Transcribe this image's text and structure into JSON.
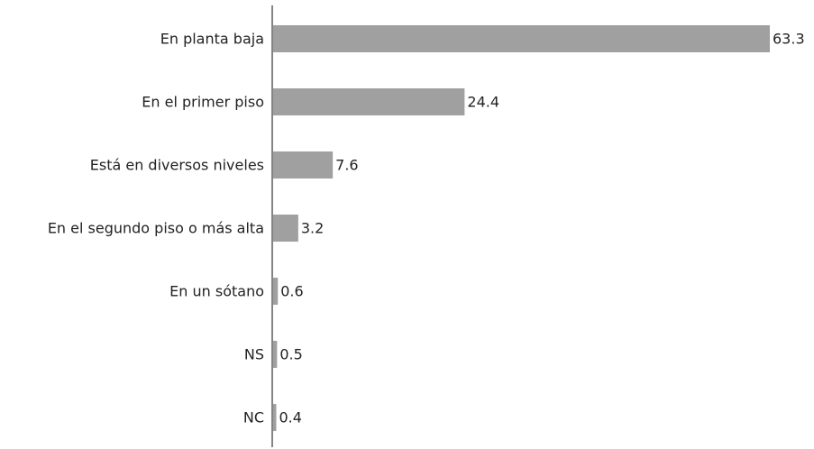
{
  "chart_data": {
    "type": "bar",
    "orientation": "horizontal",
    "categories": [
      "En planta baja",
      "En el primer piso",
      "Está en diversos niveles",
      "En el segundo piso o más alta",
      "En un sótano",
      "NS",
      "NC"
    ],
    "values": [
      63.3,
      24.4,
      7.6,
      3.2,
      0.6,
      0.5,
      0.4
    ],
    "color": "#a0a0a0"
  }
}
